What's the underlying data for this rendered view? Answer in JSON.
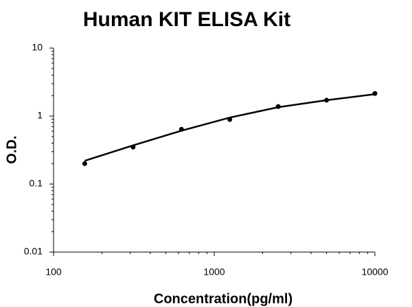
{
  "chart_data": {
    "type": "scatter",
    "title": "Human KIT ELISA Kit",
    "x_label": "Concentration(pg/ml)",
    "y_label": "O.D.",
    "x": [
      156.25,
      312.5,
      625,
      1250,
      2500,
      5000,
      10000
    ],
    "series": [
      {
        "style": "markers",
        "color": "#000000",
        "values": [
          0.2,
          0.35,
          0.64,
          0.89,
          1.38,
          1.71,
          2.15
        ]
      },
      {
        "style": "line",
        "color": "#000000",
        "values": [
          0.22,
          0.37,
          0.61,
          0.95,
          1.35,
          1.71,
          2.1
        ]
      }
    ],
    "xlog": true,
    "ylog": true,
    "minor_ticks": true,
    "xlim": [
      100,
      10000
    ],
    "ylim": [
      0.01,
      10
    ],
    "xticks": [
      100,
      1000,
      10000
    ],
    "yticks": [
      0.01,
      0.1,
      1,
      10
    ]
  }
}
